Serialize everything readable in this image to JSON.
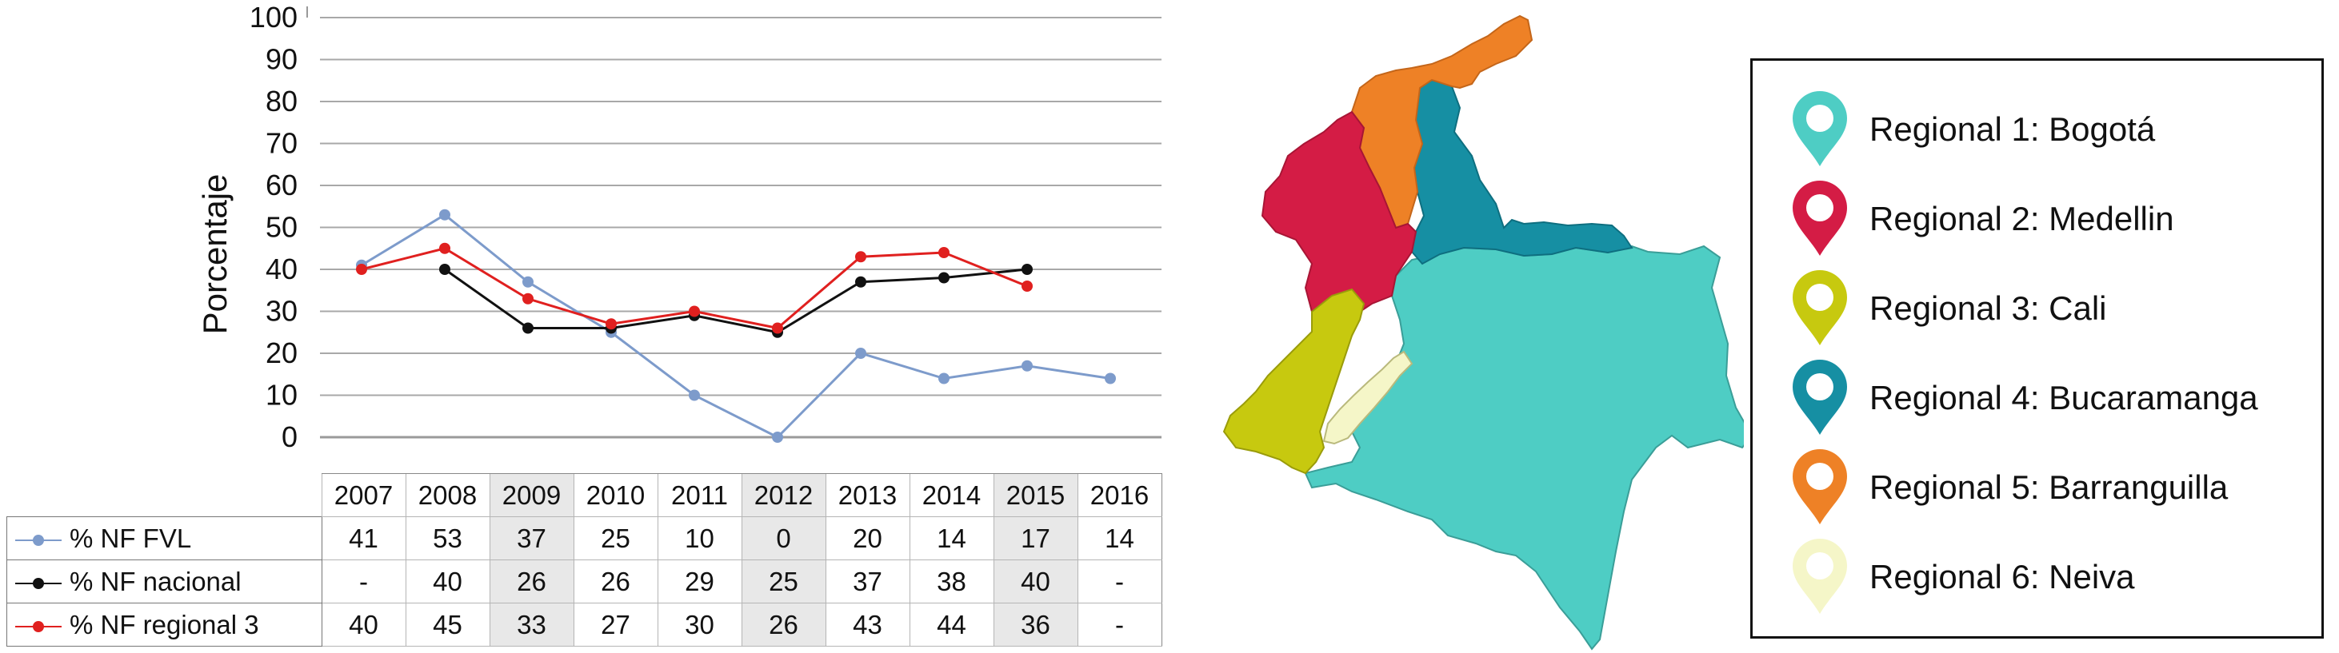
{
  "chart_data": {
    "type": "line",
    "ylabel": "Porcentaje",
    "ylim": [
      0,
      100
    ],
    "yticks": [
      "0",
      "10",
      "20",
      "30",
      "40",
      "50",
      "60",
      "70",
      "80",
      "90",
      "100"
    ],
    "categories": [
      "2007",
      "2008",
      "2009",
      "2010",
      "2011",
      "2012",
      "2013",
      "2014",
      "2015",
      "2016"
    ],
    "grid": true,
    "series": [
      {
        "name": "% NF FVL",
        "color": "#7d9bcb",
        "values": [
          41,
          53,
          37,
          25,
          10,
          0,
          20,
          14,
          17,
          14
        ],
        "labels": [
          "41",
          "53",
          "37",
          "25",
          "10",
          "0",
          "20",
          "14",
          "17",
          "14"
        ]
      },
      {
        "name": "% NF nacional",
        "color": "#111111",
        "values": [
          null,
          40,
          26,
          26,
          29,
          25,
          37,
          38,
          40,
          null
        ],
        "labels": [
          "-",
          "40",
          "26",
          "26",
          "29",
          "25",
          "37",
          "38",
          "40",
          "-"
        ]
      },
      {
        "name": "% NF regional 3",
        "color": "#e0201f",
        "values": [
          40,
          45,
          33,
          27,
          30,
          26,
          43,
          44,
          36,
          null
        ],
        "labels": [
          "40",
          "45",
          "33",
          "27",
          "30",
          "26",
          "43",
          "44",
          "36",
          "-"
        ]
      }
    ]
  },
  "legend": {
    "items": [
      {
        "label": "Regional 1: Bogotá",
        "color": "#4ecdc4"
      },
      {
        "label": "Regional 2: Medellin",
        "color": "#d41c45"
      },
      {
        "label": "Regional 3: Cali",
        "color": "#c7c90f"
      },
      {
        "label": "Regional 4: Bucaramanga",
        "color": "#168fa3"
      },
      {
        "label": "Regional 5: Barranguilla",
        "color": "#ee8126"
      },
      {
        "label": "Regional 6: Neiva",
        "color": "#f5f6c8"
      }
    ]
  },
  "map": {
    "regions": [
      {
        "name": "regional-1",
        "color": "#4ecdc4"
      },
      {
        "name": "regional-2",
        "color": "#d41c45"
      },
      {
        "name": "regional-3",
        "color": "#c7c90f"
      },
      {
        "name": "regional-4",
        "color": "#168fa3"
      },
      {
        "name": "regional-5",
        "color": "#ee8126"
      },
      {
        "name": "regional-6",
        "color": "#f5f6c8"
      }
    ]
  }
}
